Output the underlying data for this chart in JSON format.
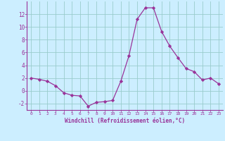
{
  "x": [
    0,
    1,
    2,
    3,
    4,
    5,
    6,
    7,
    8,
    9,
    10,
    11,
    12,
    13,
    14,
    15,
    16,
    17,
    18,
    19,
    20,
    21,
    22,
    23
  ],
  "y": [
    2.0,
    1.8,
    1.5,
    0.8,
    -0.3,
    -0.7,
    -0.8,
    -2.4,
    -1.8,
    -1.7,
    -1.5,
    1.5,
    5.5,
    11.2,
    13.0,
    13.0,
    9.3,
    7.0,
    5.2,
    3.5,
    3.0,
    1.7,
    2.0,
    1.1
  ],
  "line_color": "#993399",
  "marker": "D",
  "marker_size": 2.2,
  "bg_color": "#cceeff",
  "grid_color": "#99cccc",
  "xlabel": "Windchill (Refroidissement éolien,°C)",
  "xlabel_color": "#993399",
  "tick_color": "#993399",
  "ylim": [
    -3,
    14
  ],
  "xlim": [
    -0.5,
    23.5
  ],
  "yticks": [
    -2,
    0,
    2,
    4,
    6,
    8,
    10,
    12
  ],
  "xticks": [
    0,
    1,
    2,
    3,
    4,
    5,
    6,
    7,
    8,
    9,
    10,
    11,
    12,
    13,
    14,
    15,
    16,
    17,
    18,
    19,
    20,
    21,
    22,
    23
  ]
}
